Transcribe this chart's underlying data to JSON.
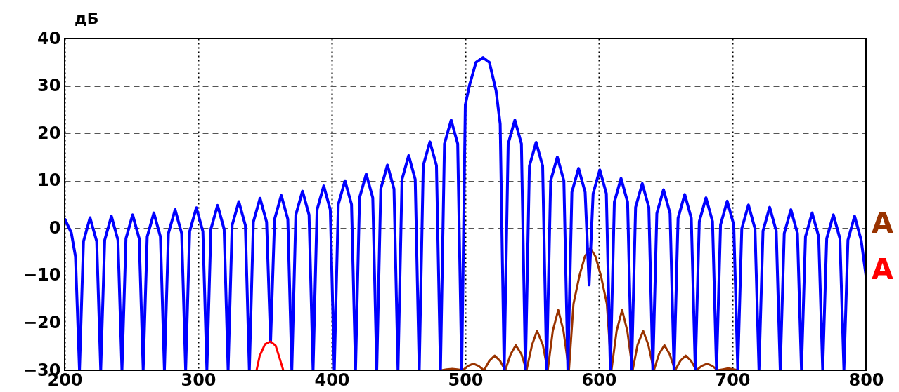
{
  "chart_data": {
    "type": "line",
    "ylabel": "дБ",
    "xlim": [
      200,
      800
    ],
    "xticks": [
      200,
      300,
      400,
      500,
      600,
      700,
      800
    ],
    "ylim": [
      -30,
      40
    ],
    "yticks": [
      -30,
      -20,
      -10,
      0,
      10,
      20,
      30,
      40
    ],
    "grid": true,
    "marker": "none",
    "line_style": "solid",
    "series": [
      {
        "name": "A",
        "color": "#993300",
        "x": [
          482.2,
          486,
          490.2,
          494,
          498.1,
          502,
          506,
          510,
          514,
          518,
          522,
          526,
          529.9,
          534,
          537.8,
          542,
          545.8,
          550,
          553.7,
          558,
          561.7,
          565.5,
          569.6,
          573.5,
          577.6,
          581,
          585.5,
          589.5,
          593.5,
          597.5,
          601.5,
          606,
          609.4,
          613.3,
          617.4,
          621.3,
          625.3,
          629,
          633.2,
          637,
          641.2,
          645,
          649.1,
          653,
          657.1,
          661,
          665,
          669,
          673,
          677,
          681,
          685,
          688.9,
          693,
          696.8,
          700.8,
          704.8
        ],
        "values": [
          -30,
          -29.8,
          -29.7,
          -29.8,
          -30,
          -29.1,
          -28.6,
          -29.1,
          -30,
          -28,
          -26.9,
          -28,
          -30,
          -26.6,
          -24.7,
          -26.6,
          -30,
          -24.6,
          -21.7,
          -24.6,
          -30,
          -21.7,
          -17.3,
          -21.7,
          -30,
          -16,
          -10,
          -6,
          -4.2,
          -6,
          -10,
          -16,
          -30,
          -21.7,
          -17.3,
          -21.7,
          -30,
          -24.6,
          -21.7,
          -24.6,
          -30,
          -26.6,
          -24.7,
          -26.6,
          -30,
          -28,
          -26.9,
          -28,
          -30,
          -29.1,
          -28.6,
          -29.1,
          -30,
          -29.8,
          -29.6,
          -29.8,
          -30
        ]
      },
      {
        "color": "#0000ff",
        "x": [
          200,
          205,
          208.1,
          211.1,
          214.1,
          219,
          224,
          227,
          230,
          235,
          239.9,
          242.9,
          245.9,
          250.9,
          255.8,
          258.8,
          261.8,
          266.8,
          271.7,
          274.7,
          277.7,
          282.7,
          287.6,
          290.6,
          293.6,
          298.6,
          303.5,
          306.5,
          309.5,
          314.5,
          319.4,
          322.4,
          325.4,
          330.4,
          335.3,
          338.3,
          341.3,
          346.3,
          351.2,
          354.2,
          357.2,
          362.2,
          367.1,
          370.1,
          373.1,
          378.1,
          383,
          386,
          389,
          394,
          398.9,
          401.9,
          404.9,
          409.9,
          414.8,
          417.8,
          420.8,
          425.8,
          430.7,
          433.7,
          436.7,
          441.7,
          446.6,
          449.6,
          452.6,
          457.6,
          462.5,
          465.5,
          468.5,
          473.5,
          478.4,
          481.4,
          484.4,
          489.4,
          494.3,
          497.3,
          500,
          503,
          508,
          513.2,
          518,
          523,
          526.1,
          529.1,
          532.1,
          537.1,
          542,
          545,
          548,
          553,
          557.9,
          560.9,
          563.9,
          568.9,
          573.8,
          576.8,
          579.8,
          584.8,
          589.7,
          592.7,
          595.7,
          600.7,
          605.6,
          608.6,
          611.6,
          616.6,
          621.5,
          624.5,
          627.5,
          632.5,
          637.4,
          640.4,
          643.4,
          648.4,
          653.3,
          656.3,
          659.3,
          664.3,
          669.2,
          672.2,
          675.2,
          680.2,
          685.1,
          688.1,
          691.1,
          696.1,
          701,
          704,
          707,
          712,
          716.9,
          719.9,
          722.9,
          727.9,
          732.8,
          735.8,
          738.8,
          743.8,
          748.7,
          751.7,
          754.7,
          759.7,
          764.6,
          767.6,
          770.6,
          775.6,
          780.5,
          783.5,
          786.5,
          791.5,
          796.4,
          800
        ],
        "values": [
          2,
          -1,
          -6,
          -30,
          -2.8,
          2.2,
          -2.8,
          -30,
          -2.5,
          2.5,
          -2.5,
          -30,
          -2.2,
          2.8,
          -2.2,
          -30,
          -1.8,
          3.2,
          -1.8,
          -30,
          -1.1,
          3.9,
          -1.1,
          -30,
          -0.7,
          4.3,
          -0.7,
          -30,
          -0.2,
          4.8,
          -0.2,
          -30,
          0.6,
          5.6,
          0.6,
          -30,
          1.3,
          6.3,
          1.3,
          -24,
          1.9,
          6.9,
          1.9,
          -30,
          2.8,
          7.8,
          2.8,
          -30,
          3.9,
          8.9,
          3.9,
          -30,
          5,
          10,
          5,
          -30,
          6.4,
          11.4,
          6.4,
          -30,
          8.3,
          13.3,
          8.3,
          -30,
          10.3,
          15.3,
          10.3,
          -30,
          13.2,
          18.2,
          13.2,
          -30,
          17.8,
          22.8,
          17.8,
          -30,
          26,
          30,
          35,
          36,
          35,
          29,
          22,
          -30,
          17.8,
          22.8,
          17.8,
          -30,
          13.1,
          18.1,
          13.1,
          -30,
          10,
          15,
          10,
          -30,
          7.6,
          12.6,
          7.6,
          -12,
          7.3,
          12.3,
          7.3,
          -30,
          5.5,
          10.5,
          5.5,
          -30,
          4.4,
          9.4,
          4.4,
          -30,
          3.1,
          8.1,
          3.1,
          -30,
          2.1,
          7.1,
          2.1,
          -30,
          1.4,
          6.4,
          1.4,
          -30,
          0.7,
          5.7,
          0.7,
          -30,
          -0.1,
          4.9,
          -0.1,
          -30,
          -0.6,
          4.4,
          -0.6,
          -30,
          -1.1,
          3.9,
          -1.1,
          -30,
          -1.8,
          3.2,
          -1.8,
          -30,
          -2.2,
          2.8,
          -2.2,
          -30,
          -2.5,
          2.5,
          -2.5,
          -10
        ]
      },
      {
        "name": "A",
        "color": "#ff0000",
        "x": [
          343.7,
          346,
          350,
          354.2,
          358,
          361,
          363.7
        ],
        "values": [
          -30,
          -27,
          -24.5,
          -23.9,
          -24.8,
          -27.5,
          -30
        ]
      }
    ]
  }
}
